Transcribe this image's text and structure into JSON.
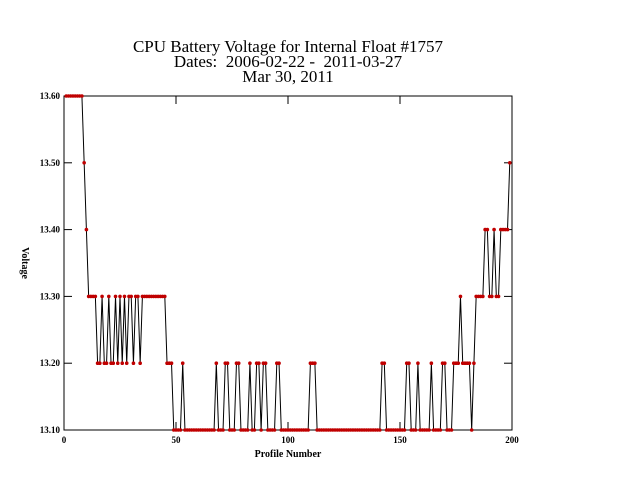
{
  "chart_data": {
    "type": "line",
    "title": "CPU Battery Voltage for Internal Float #1757",
    "subtitle": "Dates:  2006-02-22 -  2011-03-27",
    "date": "Mar 30, 2011",
    "xlabel": "Profile Number",
    "ylabel": "Voltage",
    "line_color": "#000000",
    "marker_color": "#c00000",
    "xlim": [
      0,
      200
    ],
    "ylim": [
      13.1,
      13.6
    ],
    "xticks": [
      0,
      50,
      100,
      150,
      200
    ],
    "yticks": [
      {
        "value": 13.1,
        "label": "13.10"
      },
      {
        "value": 13.2,
        "label": "13.20"
      },
      {
        "value": 13.3,
        "label": "13.30"
      },
      {
        "value": 13.4,
        "label": "13.40"
      },
      {
        "value": 13.5,
        "label": "13.50"
      },
      {
        "value": 13.6,
        "label": "13.60"
      }
    ],
    "x": [
      1,
      2,
      3,
      4,
      5,
      6,
      7,
      8,
      9,
      10,
      11,
      12,
      13,
      14,
      15,
      16,
      17,
      18,
      19,
      20,
      21,
      22,
      23,
      24,
      25,
      26,
      27,
      28,
      29,
      30,
      31,
      32,
      33,
      34,
      35,
      36,
      37,
      38,
      39,
      40,
      41,
      42,
      43,
      44,
      45,
      46,
      47,
      48,
      49,
      50,
      51,
      52,
      53,
      54,
      55,
      56,
      57,
      58,
      59,
      60,
      61,
      62,
      63,
      64,
      65,
      66,
      67,
      68,
      69,
      70,
      71,
      72,
      73,
      74,
      75,
      76,
      77,
      78,
      79,
      80,
      81,
      82,
      83,
      84,
      85,
      86,
      87,
      88,
      89,
      90,
      91,
      92,
      93,
      94,
      95,
      96,
      97,
      98,
      99,
      100,
      101,
      102,
      103,
      104,
      105,
      106,
      107,
      108,
      109,
      110,
      111,
      112,
      113,
      114,
      115,
      116,
      117,
      118,
      119,
      120,
      121,
      122,
      123,
      124,
      125,
      126,
      127,
      128,
      129,
      130,
      131,
      132,
      133,
      134,
      135,
      136,
      137,
      138,
      139,
      140,
      141,
      142,
      143,
      144,
      145,
      146,
      147,
      148,
      149,
      150,
      151,
      152,
      153,
      154,
      155,
      156,
      157,
      158,
      159,
      160,
      161,
      162,
      163,
      164,
      165,
      166,
      167,
      168,
      169,
      170,
      171,
      172,
      173,
      174,
      175,
      176,
      177,
      178,
      179,
      180,
      181,
      182,
      183,
      184,
      185,
      186,
      187,
      188,
      189,
      190,
      191,
      192,
      193,
      194,
      195,
      196,
      197,
      198,
      199
    ],
    "values": [
      13.6,
      13.6,
      13.6,
      13.6,
      13.6,
      13.6,
      13.6,
      13.6,
      13.5,
      13.4,
      13.3,
      13.3,
      13.3,
      13.3,
      13.2,
      13.2,
      13.3,
      13.2,
      13.2,
      13.3,
      13.2,
      13.2,
      13.3,
      13.2,
      13.3,
      13.2,
      13.3,
      13.2,
      13.3,
      13.3,
      13.2,
      13.3,
      13.3,
      13.2,
      13.3,
      13.3,
      13.3,
      13.3,
      13.3,
      13.3,
      13.3,
      13.3,
      13.3,
      13.3,
      13.3,
      13.2,
      13.2,
      13.2,
      13.1,
      13.1,
      13.1,
      13.1,
      13.2,
      13.1,
      13.1,
      13.1,
      13.1,
      13.1,
      13.1,
      13.1,
      13.1,
      13.1,
      13.1,
      13.1,
      13.1,
      13.1,
      13.1,
      13.2,
      13.1,
      13.1,
      13.1,
      13.2,
      13.2,
      13.1,
      13.1,
      13.1,
      13.2,
      13.2,
      13.1,
      13.1,
      13.1,
      13.1,
      13.2,
      13.1,
      13.1,
      13.2,
      13.2,
      13.1,
      13.2,
      13.2,
      13.1,
      13.1,
      13.1,
      13.1,
      13.2,
      13.2,
      13.1,
      13.1,
      13.1,
      13.1,
      13.1,
      13.1,
      13.1,
      13.1,
      13.1,
      13.1,
      13.1,
      13.1,
      13.1,
      13.2,
      13.2,
      13.2,
      13.1,
      13.1,
      13.1,
      13.1,
      13.1,
      13.1,
      13.1,
      13.1,
      13.1,
      13.1,
      13.1,
      13.1,
      13.1,
      13.1,
      13.1,
      13.1,
      13.1,
      13.1,
      13.1,
      13.1,
      13.1,
      13.1,
      13.1,
      13.1,
      13.1,
      13.1,
      13.1,
      13.1,
      13.1,
      13.2,
      13.2,
      13.1,
      13.1,
      13.1,
      13.1,
      13.1,
      13.1,
      13.1,
      13.1,
      13.1,
      13.2,
      13.2,
      13.1,
      13.1,
      13.1,
      13.2,
      13.1,
      13.1,
      13.1,
      13.1,
      13.1,
      13.2,
      13.1,
      13.1,
      13.1,
      13.1,
      13.2,
      13.2,
      13.1,
      13.1,
      13.1,
      13.2,
      13.2,
      13.2,
      13.3,
      13.2,
      13.2,
      13.2,
      13.2,
      13.1,
      13.2,
      13.3,
      13.3,
      13.3,
      13.3,
      13.4,
      13.4,
      13.3,
      13.3,
      13.4,
      13.3,
      13.3,
      13.4,
      13.4,
      13.4,
      13.4,
      13.5
    ]
  }
}
